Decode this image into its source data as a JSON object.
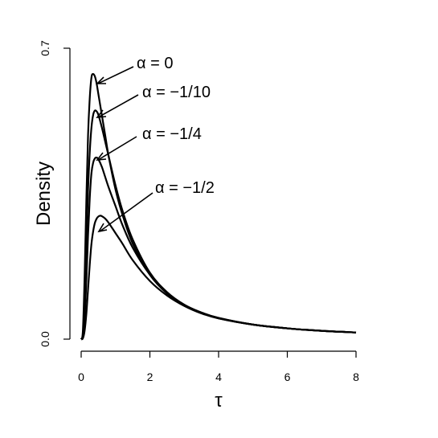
{
  "chart_data": {
    "type": "line",
    "title": "",
    "xlabel": "τ",
    "ylabel": "Density",
    "xlim": [
      0,
      8
    ],
    "ylim": [
      0,
      0.7
    ],
    "xticks": [
      "0",
      "2",
      "4",
      "6",
      "8"
    ],
    "yticks": [
      "0.0",
      "0.7"
    ],
    "grid": false,
    "series": [
      {
        "name": "α = 0",
        "x": [
          0,
          0.05,
          0.1,
          0.15,
          0.2,
          0.25,
          0.3,
          0.35,
          0.4,
          0.45,
          0.5,
          0.6,
          0.7,
          0.8,
          1.0,
          1.2,
          1.5,
          2.0,
          2.5,
          3.0,
          3.5,
          4.0,
          5.0,
          6.0,
          7.0,
          8.0
        ],
        "y": [
          0,
          0.02,
          0.15,
          0.33,
          0.49,
          0.58,
          0.63,
          0.638,
          0.632,
          0.615,
          0.59,
          0.54,
          0.49,
          0.44,
          0.36,
          0.3,
          0.23,
          0.155,
          0.11,
          0.082,
          0.064,
          0.051,
          0.035,
          0.026,
          0.02,
          0.016
        ]
      },
      {
        "name": "α = −1/10",
        "x": [
          0,
          0.05,
          0.1,
          0.15,
          0.2,
          0.25,
          0.3,
          0.35,
          0.4,
          0.45,
          0.5,
          0.6,
          0.7,
          0.8,
          1.0,
          1.2,
          1.5,
          2.0,
          2.5,
          3.0,
          3.5,
          4.0,
          5.0,
          6.0,
          7.0,
          8.0
        ],
        "y": [
          0,
          0.01,
          0.09,
          0.23,
          0.36,
          0.45,
          0.51,
          0.54,
          0.55,
          0.548,
          0.54,
          0.51,
          0.475,
          0.44,
          0.37,
          0.31,
          0.24,
          0.16,
          0.113,
          0.083,
          0.064,
          0.051,
          0.035,
          0.026,
          0.02,
          0.016
        ]
      },
      {
        "name": "α = −1/4",
        "x": [
          0,
          0.05,
          0.1,
          0.15,
          0.2,
          0.25,
          0.3,
          0.35,
          0.4,
          0.45,
          0.5,
          0.6,
          0.7,
          0.8,
          1.0,
          1.2,
          1.5,
          2.0,
          2.5,
          3.0,
          3.5,
          4.0,
          5.0,
          6.0,
          7.0,
          8.0
        ],
        "y": [
          0,
          0.005,
          0.05,
          0.14,
          0.25,
          0.34,
          0.4,
          0.425,
          0.435,
          0.437,
          0.433,
          0.415,
          0.39,
          0.365,
          0.32,
          0.275,
          0.22,
          0.155,
          0.11,
          0.082,
          0.063,
          0.05,
          0.035,
          0.026,
          0.02,
          0.016
        ]
      },
      {
        "name": "α = −1/2",
        "x": [
          0,
          0.05,
          0.1,
          0.15,
          0.2,
          0.25,
          0.3,
          0.35,
          0.4,
          0.45,
          0.5,
          0.55,
          0.6,
          0.7,
          0.8,
          1.0,
          1.2,
          1.5,
          2.0,
          2.5,
          3.0,
          3.5,
          4.0,
          5.0,
          6.0,
          7.0,
          8.0
        ],
        "y": [
          0,
          0.002,
          0.02,
          0.06,
          0.12,
          0.18,
          0.23,
          0.26,
          0.28,
          0.29,
          0.295,
          0.297,
          0.296,
          0.29,
          0.28,
          0.255,
          0.23,
          0.19,
          0.14,
          0.105,
          0.08,
          0.062,
          0.05,
          0.035,
          0.026,
          0.02,
          0.016
        ]
      }
    ]
  }
}
